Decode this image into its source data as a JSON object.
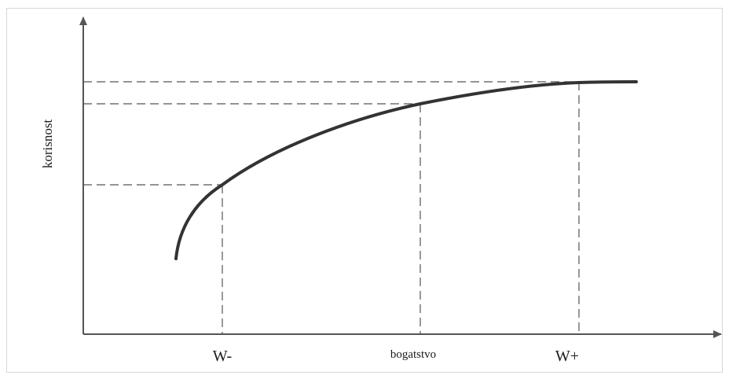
{
  "diagram": {
    "y_axis_label": "korisnost",
    "x_labels": {
      "w_minus": "W-",
      "wealth": "bogatstvo",
      "w_plus": "W+"
    }
  },
  "colors": {
    "curve": "#333333",
    "axis": "#555555",
    "guides": "#555555",
    "frame": "#d8d8d8",
    "background": "#ffffff"
  }
}
